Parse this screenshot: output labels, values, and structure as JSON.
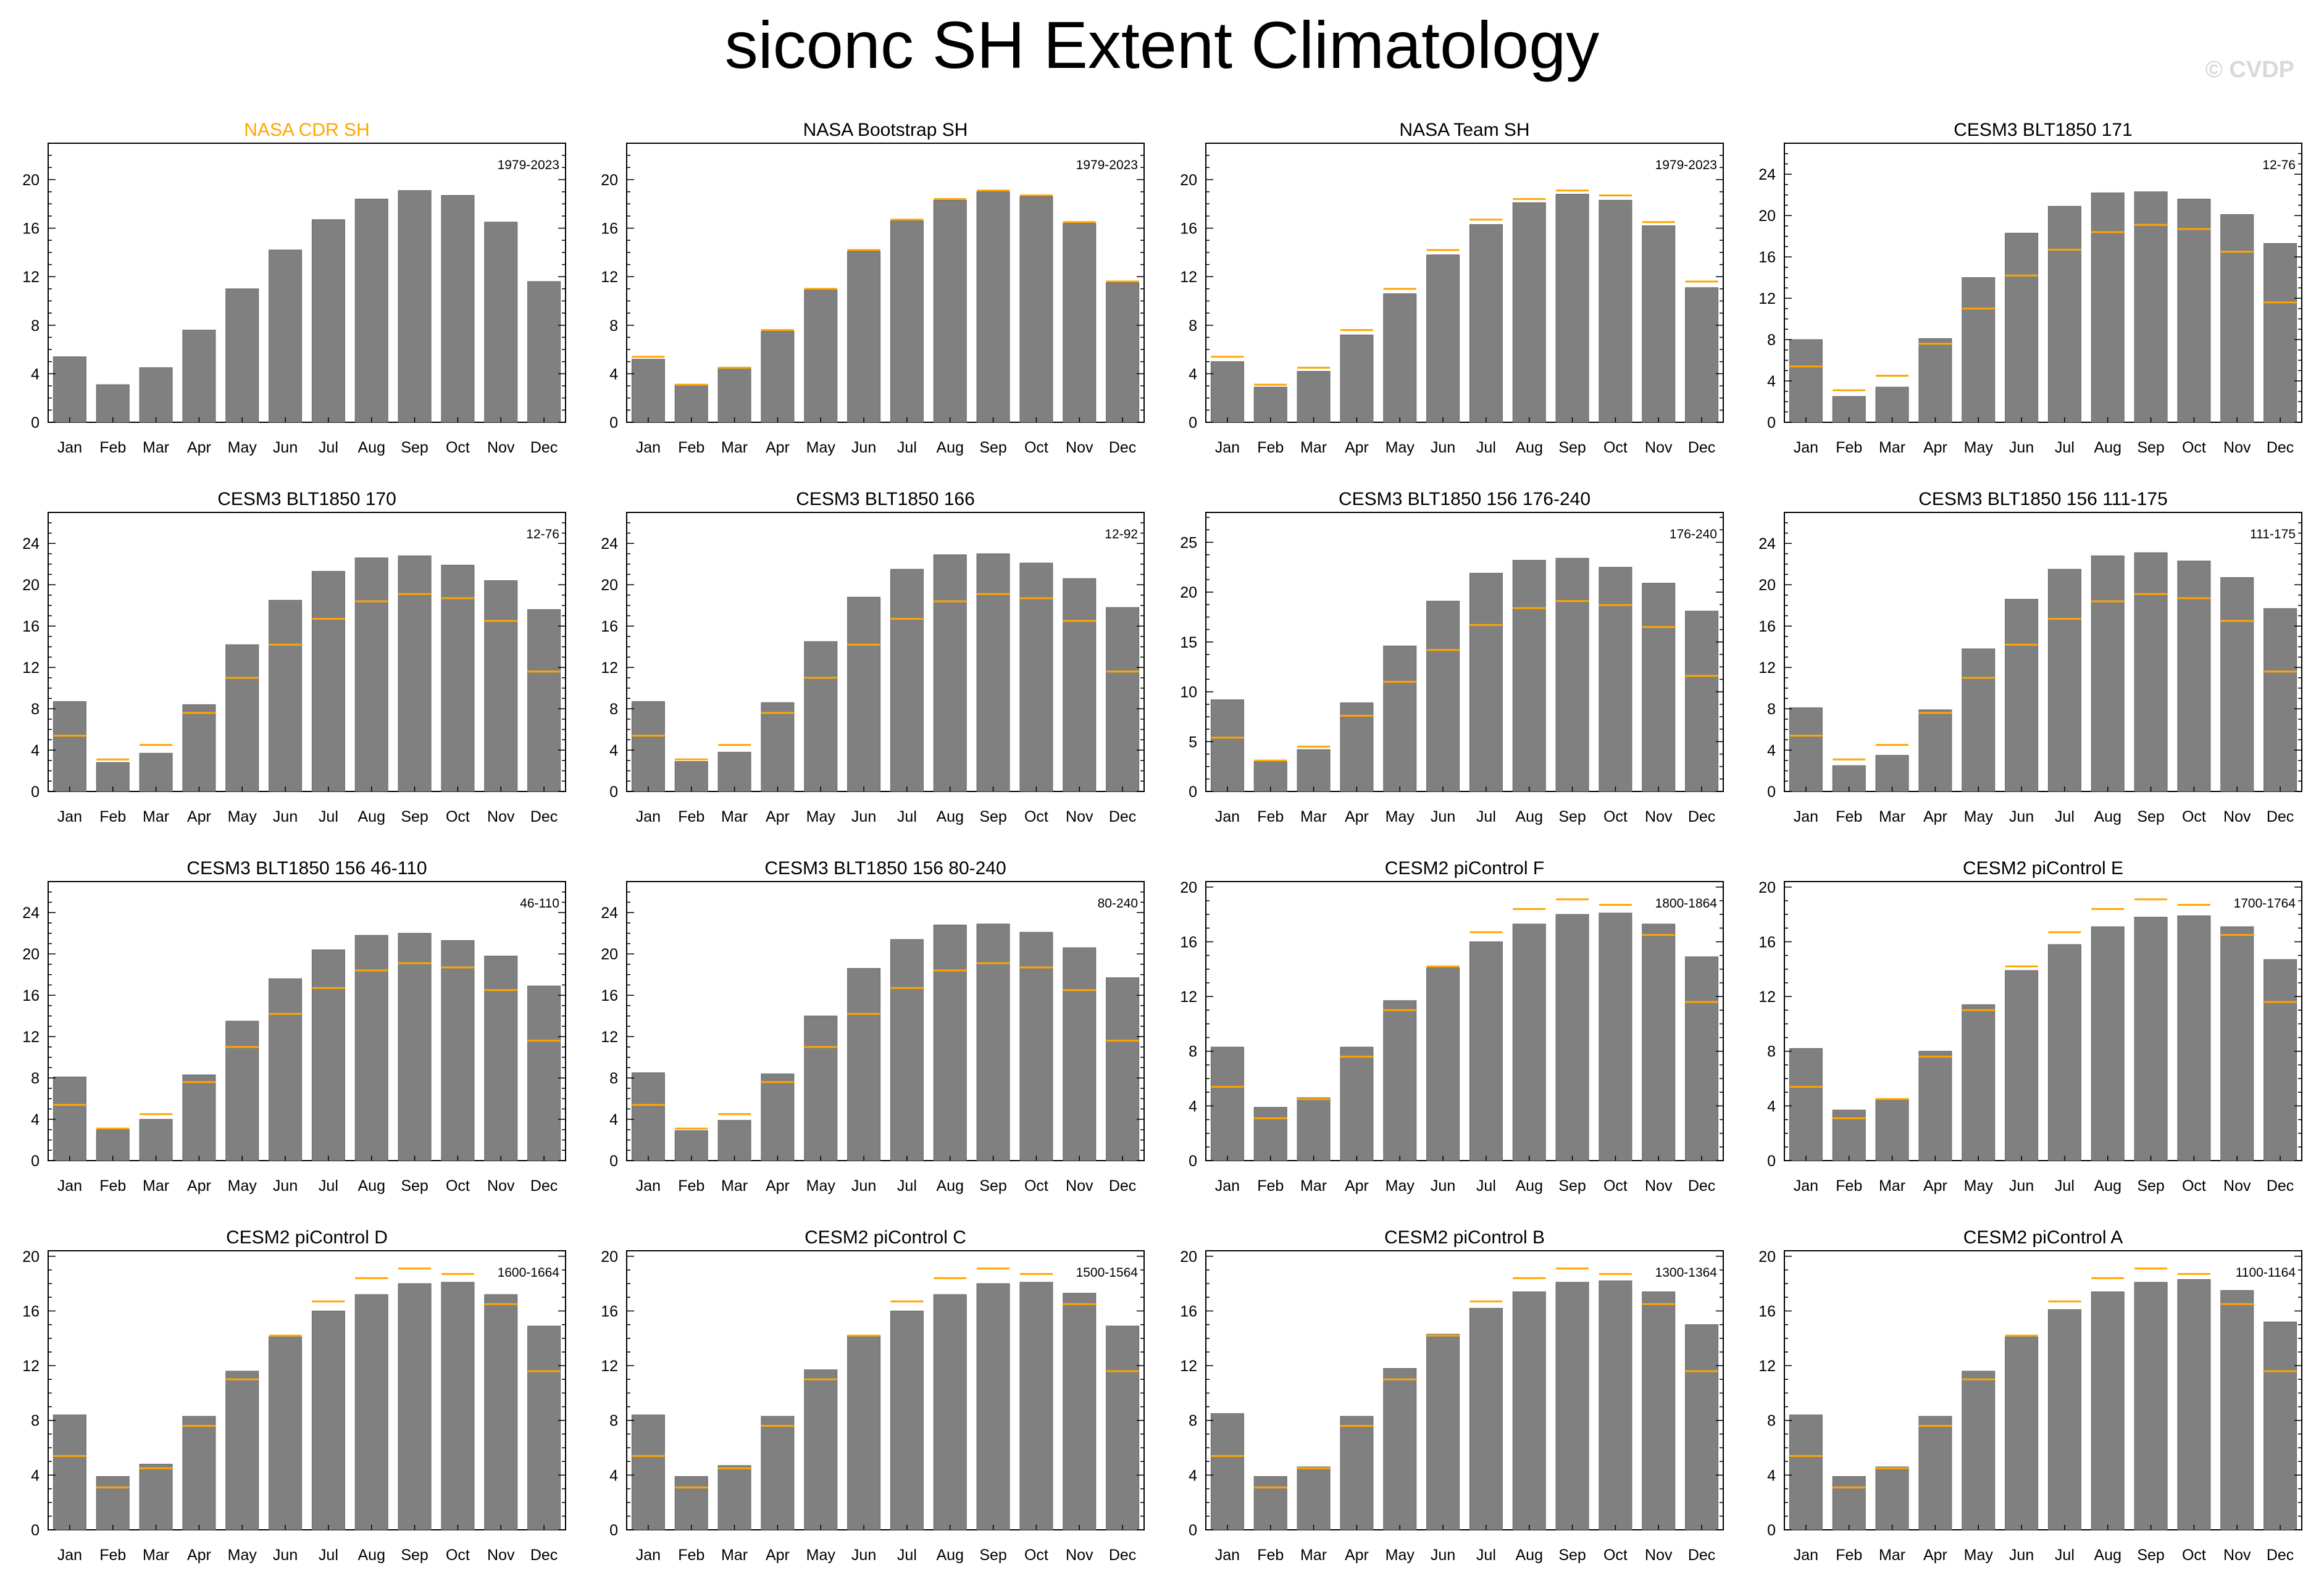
{
  "title": "siconc SH Extent Climatology",
  "watermark": "© CVDP",
  "colors": {
    "bar": "#808080",
    "reference_line": "#ffa500",
    "highlight_title": "#ffa500",
    "axis": "#000000"
  },
  "months": [
    "Jan",
    "Feb",
    "Mar",
    "Apr",
    "May",
    "Jun",
    "Jul",
    "Aug",
    "Sep",
    "Oct",
    "Nov",
    "Dec"
  ],
  "chart_data": [
    {
      "type": "bar",
      "title": "NASA CDR SH",
      "title_color": "#ffa500",
      "annotation": "1979-2023",
      "categories": [
        "Jan",
        "Feb",
        "Mar",
        "Apr",
        "May",
        "Jun",
        "Jul",
        "Aug",
        "Sep",
        "Oct",
        "Nov",
        "Dec"
      ],
      "values": [
        5.4,
        3.1,
        4.5,
        7.6,
        11.0,
        14.2,
        16.7,
        18.4,
        19.1,
        18.7,
        16.5,
        11.6
      ],
      "reference": [
        5.4,
        3.1,
        4.5,
        7.6,
        11.0,
        14.2,
        16.7,
        18.4,
        19.1,
        18.7,
        16.5,
        11.6
      ],
      "yticks": [
        0,
        4,
        8,
        12,
        16,
        20
      ],
      "ylim": [
        0,
        23
      ],
      "show_reference": false
    },
    {
      "type": "bar",
      "title": "NASA Bootstrap SH",
      "annotation": "1979-2023",
      "categories": [
        "Jan",
        "Feb",
        "Mar",
        "Apr",
        "May",
        "Jun",
        "Jul",
        "Aug",
        "Sep",
        "Oct",
        "Nov",
        "Dec"
      ],
      "values": [
        5.2,
        3.1,
        4.5,
        7.5,
        10.9,
        14.1,
        16.6,
        18.3,
        19.0,
        18.6,
        16.4,
        11.5
      ],
      "reference": [
        5.4,
        3.1,
        4.5,
        7.6,
        11.0,
        14.2,
        16.7,
        18.4,
        19.1,
        18.7,
        16.5,
        11.6
      ],
      "yticks": [
        0,
        4,
        8,
        12,
        16,
        20
      ],
      "ylim": [
        0,
        23
      ],
      "show_reference": true
    },
    {
      "type": "bar",
      "title": "NASA Team SH",
      "annotation": "1979-2023",
      "categories": [
        "Jan",
        "Feb",
        "Mar",
        "Apr",
        "May",
        "Jun",
        "Jul",
        "Aug",
        "Sep",
        "Oct",
        "Nov",
        "Dec"
      ],
      "values": [
        5.0,
        2.9,
        4.2,
        7.2,
        10.6,
        13.8,
        16.3,
        18.1,
        18.8,
        18.3,
        16.2,
        11.1
      ],
      "reference": [
        5.4,
        3.1,
        4.5,
        7.6,
        11.0,
        14.2,
        16.7,
        18.4,
        19.1,
        18.7,
        16.5,
        11.6
      ],
      "yticks": [
        0,
        4,
        8,
        12,
        16,
        20
      ],
      "ylim": [
        0,
        23
      ],
      "show_reference": true
    },
    {
      "type": "bar",
      "title": "CESM3 BLT1850 171",
      "annotation": "12-76",
      "categories": [
        "Jan",
        "Feb",
        "Mar",
        "Apr",
        "May",
        "Jun",
        "Jul",
        "Aug",
        "Sep",
        "Oct",
        "Nov",
        "Dec"
      ],
      "values": [
        8.0,
        2.5,
        3.4,
        8.1,
        14.0,
        18.3,
        20.9,
        22.2,
        22.3,
        21.6,
        20.1,
        17.3
      ],
      "reference": [
        5.4,
        3.1,
        4.5,
        7.6,
        11.0,
        14.2,
        16.7,
        18.4,
        19.1,
        18.7,
        16.5,
        11.6
      ],
      "yticks": [
        0,
        4,
        8,
        12,
        16,
        20,
        24
      ],
      "ylim": [
        0,
        27
      ],
      "show_reference": true
    },
    {
      "type": "bar",
      "title": "CESM3 BLT1850 170",
      "annotation": "12-76",
      "categories": [
        "Jan",
        "Feb",
        "Mar",
        "Apr",
        "May",
        "Jun",
        "Jul",
        "Aug",
        "Sep",
        "Oct",
        "Nov",
        "Dec"
      ],
      "values": [
        8.7,
        2.8,
        3.7,
        8.4,
        14.2,
        18.5,
        21.3,
        22.6,
        22.8,
        21.9,
        20.4,
        17.6
      ],
      "reference": [
        5.4,
        3.1,
        4.5,
        7.6,
        11.0,
        14.2,
        16.7,
        18.4,
        19.1,
        18.7,
        16.5,
        11.6
      ],
      "yticks": [
        0,
        4,
        8,
        12,
        16,
        20,
        24
      ],
      "ylim": [
        0,
        27
      ],
      "show_reference": true
    },
    {
      "type": "bar",
      "title": "CESM3 BLT1850 166",
      "annotation": "12-92",
      "categories": [
        "Jan",
        "Feb",
        "Mar",
        "Apr",
        "May",
        "Jun",
        "Jul",
        "Aug",
        "Sep",
        "Oct",
        "Nov",
        "Dec"
      ],
      "values": [
        8.7,
        2.9,
        3.8,
        8.6,
        14.5,
        18.8,
        21.5,
        22.9,
        23.0,
        22.1,
        20.6,
        17.8
      ],
      "reference": [
        5.4,
        3.1,
        4.5,
        7.6,
        11.0,
        14.2,
        16.7,
        18.4,
        19.1,
        18.7,
        16.5,
        11.6
      ],
      "yticks": [
        0,
        4,
        8,
        12,
        16,
        20,
        24
      ],
      "ylim": [
        0,
        27
      ],
      "show_reference": true
    },
    {
      "type": "bar",
      "title": "CESM3 BLT1850 156 176-240",
      "annotation": "176-240",
      "categories": [
        "Jan",
        "Feb",
        "Mar",
        "Apr",
        "May",
        "Jun",
        "Jul",
        "Aug",
        "Sep",
        "Oct",
        "Nov",
        "Dec"
      ],
      "values": [
        9.2,
        3.0,
        4.2,
        8.9,
        14.6,
        19.1,
        21.9,
        23.2,
        23.4,
        22.5,
        20.9,
        18.1
      ],
      "reference": [
        5.4,
        3.1,
        4.5,
        7.6,
        11.0,
        14.2,
        16.7,
        18.4,
        19.1,
        18.7,
        16.5,
        11.6
      ],
      "yticks": [
        0,
        5,
        10,
        15,
        20,
        25
      ],
      "ylim": [
        0,
        28
      ],
      "show_reference": true
    },
    {
      "type": "bar",
      "title": "CESM3 BLT1850 156 111-175",
      "annotation": "111-175",
      "categories": [
        "Jan",
        "Feb",
        "Mar",
        "Apr",
        "May",
        "Jun",
        "Jul",
        "Aug",
        "Sep",
        "Oct",
        "Nov",
        "Dec"
      ],
      "values": [
        8.1,
        2.5,
        3.5,
        7.9,
        13.8,
        18.6,
        21.5,
        22.8,
        23.1,
        22.3,
        20.7,
        17.7
      ],
      "reference": [
        5.4,
        3.1,
        4.5,
        7.6,
        11.0,
        14.2,
        16.7,
        18.4,
        19.1,
        18.7,
        16.5,
        11.6
      ],
      "yticks": [
        0,
        4,
        8,
        12,
        16,
        20,
        24
      ],
      "ylim": [
        0,
        27
      ],
      "show_reference": true
    },
    {
      "type": "bar",
      "title": "CESM3 BLT1850 156 46-110",
      "annotation": "46-110",
      "categories": [
        "Jan",
        "Feb",
        "Mar",
        "Apr",
        "May",
        "Jun",
        "Jul",
        "Aug",
        "Sep",
        "Oct",
        "Nov",
        "Dec"
      ],
      "values": [
        8.1,
        3.0,
        4.0,
        8.3,
        13.5,
        17.6,
        20.4,
        21.8,
        22.0,
        21.3,
        19.8,
        16.9
      ],
      "reference": [
        5.4,
        3.1,
        4.5,
        7.6,
        11.0,
        14.2,
        16.7,
        18.4,
        19.1,
        18.7,
        16.5,
        11.6
      ],
      "yticks": [
        0,
        4,
        8,
        12,
        16,
        20,
        24
      ],
      "ylim": [
        0,
        27
      ],
      "show_reference": true
    },
    {
      "type": "bar",
      "title": "CESM3 BLT1850 156 80-240",
      "annotation": "80-240",
      "categories": [
        "Jan",
        "Feb",
        "Mar",
        "Apr",
        "May",
        "Jun",
        "Jul",
        "Aug",
        "Sep",
        "Oct",
        "Nov",
        "Dec"
      ],
      "values": [
        8.5,
        2.9,
        3.9,
        8.4,
        14.0,
        18.6,
        21.4,
        22.8,
        22.9,
        22.1,
        20.6,
        17.7
      ],
      "reference": [
        5.4,
        3.1,
        4.5,
        7.6,
        11.0,
        14.2,
        16.7,
        18.4,
        19.1,
        18.7,
        16.5,
        11.6
      ],
      "yticks": [
        0,
        4,
        8,
        12,
        16,
        20,
        24
      ],
      "ylim": [
        0,
        27
      ],
      "show_reference": true
    },
    {
      "type": "bar",
      "title": "CESM2 piControl F",
      "annotation": "1800-1864",
      "categories": [
        "Jan",
        "Feb",
        "Mar",
        "Apr",
        "May",
        "Jun",
        "Jul",
        "Aug",
        "Sep",
        "Oct",
        "Nov",
        "Dec"
      ],
      "values": [
        8.3,
        3.9,
        4.6,
        8.3,
        11.7,
        14.1,
        16.0,
        17.3,
        18.0,
        18.1,
        17.3,
        14.9
      ],
      "reference": [
        5.4,
        3.1,
        4.5,
        7.6,
        11.0,
        14.2,
        16.7,
        18.4,
        19.1,
        18.7,
        16.5,
        11.6
      ],
      "yticks": [
        0,
        4,
        8,
        12,
        16,
        20
      ],
      "ylim": [
        0,
        20.4
      ],
      "show_reference": true
    },
    {
      "type": "bar",
      "title": "CESM2 piControl E",
      "annotation": "1700-1764",
      "categories": [
        "Jan",
        "Feb",
        "Mar",
        "Apr",
        "May",
        "Jun",
        "Jul",
        "Aug",
        "Sep",
        "Oct",
        "Nov",
        "Dec"
      ],
      "values": [
        8.2,
        3.7,
        4.5,
        8.0,
        11.4,
        13.9,
        15.8,
        17.1,
        17.8,
        17.9,
        17.1,
        14.7
      ],
      "reference": [
        5.4,
        3.1,
        4.5,
        7.6,
        11.0,
        14.2,
        16.7,
        18.4,
        19.1,
        18.7,
        16.5,
        11.6
      ],
      "yticks": [
        0,
        4,
        8,
        12,
        16,
        20
      ],
      "ylim": [
        0,
        20.4
      ],
      "show_reference": true
    },
    {
      "type": "bar",
      "title": "CESM2 piControl D",
      "annotation": "1600-1664",
      "categories": [
        "Jan",
        "Feb",
        "Mar",
        "Apr",
        "May",
        "Jun",
        "Jul",
        "Aug",
        "Sep",
        "Oct",
        "Nov",
        "Dec"
      ],
      "values": [
        8.4,
        3.9,
        4.8,
        8.3,
        11.6,
        14.1,
        16.0,
        17.2,
        18.0,
        18.1,
        17.2,
        14.9
      ],
      "reference": [
        5.4,
        3.1,
        4.5,
        7.6,
        11.0,
        14.2,
        16.7,
        18.4,
        19.1,
        18.7,
        16.5,
        11.6
      ],
      "yticks": [
        0,
        4,
        8,
        12,
        16,
        20
      ],
      "ylim": [
        0,
        20.4
      ],
      "show_reference": true
    },
    {
      "type": "bar",
      "title": "CESM2 piControl C",
      "annotation": "1500-1564",
      "categories": [
        "Jan",
        "Feb",
        "Mar",
        "Apr",
        "May",
        "Jun",
        "Jul",
        "Aug",
        "Sep",
        "Oct",
        "Nov",
        "Dec"
      ],
      "values": [
        8.4,
        3.9,
        4.7,
        8.3,
        11.7,
        14.2,
        16.0,
        17.2,
        18.0,
        18.1,
        17.3,
        14.9
      ],
      "reference": [
        5.4,
        3.1,
        4.5,
        7.6,
        11.0,
        14.2,
        16.7,
        18.4,
        19.1,
        18.7,
        16.5,
        11.6
      ],
      "yticks": [
        0,
        4,
        8,
        12,
        16,
        20
      ],
      "ylim": [
        0,
        20.4
      ],
      "show_reference": true
    },
    {
      "type": "bar",
      "title": "CESM2 piControl B",
      "annotation": "1300-1364",
      "categories": [
        "Jan",
        "Feb",
        "Mar",
        "Apr",
        "May",
        "Jun",
        "Jul",
        "Aug",
        "Sep",
        "Oct",
        "Nov",
        "Dec"
      ],
      "values": [
        8.5,
        3.9,
        4.6,
        8.3,
        11.8,
        14.3,
        16.2,
        17.4,
        18.1,
        18.2,
        17.4,
        15.0
      ],
      "reference": [
        5.4,
        3.1,
        4.5,
        7.6,
        11.0,
        14.2,
        16.7,
        18.4,
        19.1,
        18.7,
        16.5,
        11.6
      ],
      "yticks": [
        0,
        4,
        8,
        12,
        16,
        20
      ],
      "ylim": [
        0,
        20.4
      ],
      "show_reference": true
    },
    {
      "type": "bar",
      "title": "CESM2 piControl A",
      "annotation": "1100-1164",
      "categories": [
        "Jan",
        "Feb",
        "Mar",
        "Apr",
        "May",
        "Jun",
        "Jul",
        "Aug",
        "Sep",
        "Oct",
        "Nov",
        "Dec"
      ],
      "values": [
        8.4,
        3.9,
        4.6,
        8.3,
        11.6,
        14.1,
        16.1,
        17.4,
        18.1,
        18.3,
        17.5,
        15.2
      ],
      "reference": [
        5.4,
        3.1,
        4.5,
        7.6,
        11.0,
        14.2,
        16.7,
        18.4,
        19.1,
        18.7,
        16.5,
        11.6
      ],
      "yticks": [
        0,
        4,
        8,
        12,
        16,
        20
      ],
      "ylim": [
        0,
        20.4
      ],
      "show_reference": true
    }
  ]
}
